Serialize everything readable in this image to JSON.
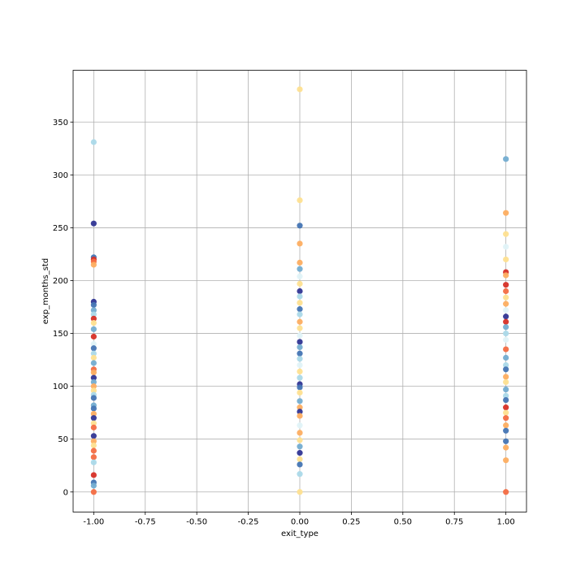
{
  "chart_data": {
    "type": "scatter",
    "title": "",
    "xlabel": "exit_type",
    "ylabel": "exp_months_std",
    "xlim": [
      -1.1,
      1.1
    ],
    "ylim": [
      -19,
      399
    ],
    "grid": true,
    "legend": "none",
    "xticks": [
      -1.0,
      -0.75,
      -0.5,
      -0.25,
      0.0,
      0.25,
      0.5,
      0.75,
      1.0
    ],
    "xtick_labels": [
      "-1.00",
      "-0.75",
      "-0.50",
      "-0.25",
      "0.00",
      "0.25",
      "0.50",
      "0.75",
      "1.00"
    ],
    "yticks": [
      0,
      50,
      100,
      150,
      200,
      250,
      300,
      350
    ],
    "ytick_labels": [
      "0",
      "50",
      "100",
      "150",
      "200",
      "250",
      "300",
      "350"
    ],
    "colormap": [
      "#313695",
      "#4575b4",
      "#74add1",
      "#abd9e9",
      "#e0f3f8",
      "#fee090",
      "#fdae61",
      "#f46d43",
      "#d73027"
    ],
    "points": [
      {
        "x": -1,
        "y": 331,
        "color": "#abd9e9"
      },
      {
        "x": -1,
        "y": 254,
        "color": "#313695"
      },
      {
        "x": -1,
        "y": 222,
        "color": "#4575b4"
      },
      {
        "x": -1,
        "y": 220,
        "color": "#d73027"
      },
      {
        "x": -1,
        "y": 218,
        "color": "#f46d43"
      },
      {
        "x": -1,
        "y": 215,
        "color": "#fdae61"
      },
      {
        "x": -1,
        "y": 180,
        "color": "#313695"
      },
      {
        "x": -1,
        "y": 177,
        "color": "#4575b4"
      },
      {
        "x": -1,
        "y": 172,
        "color": "#74add1"
      },
      {
        "x": -1,
        "y": 168,
        "color": "#abd9e9"
      },
      {
        "x": -1,
        "y": 164,
        "color": "#d73027"
      },
      {
        "x": -1,
        "y": 160,
        "color": "#fee090"
      },
      {
        "x": -1,
        "y": 154,
        "color": "#74add1"
      },
      {
        "x": -1,
        "y": 147,
        "color": "#d73027"
      },
      {
        "x": -1,
        "y": 140,
        "color": "#e0f3f8"
      },
      {
        "x": -1,
        "y": 136,
        "color": "#4575b4"
      },
      {
        "x": -1,
        "y": 131,
        "color": "#abd9e9"
      },
      {
        "x": -1,
        "y": 127,
        "color": "#fee090"
      },
      {
        "x": -1,
        "y": 122,
        "color": "#74add1"
      },
      {
        "x": -1,
        "y": 116,
        "color": "#f46d43"
      },
      {
        "x": -1,
        "y": 113,
        "color": "#fdae61"
      },
      {
        "x": -1,
        "y": 108,
        "color": "#313695"
      },
      {
        "x": -1,
        "y": 104,
        "color": "#74add1"
      },
      {
        "x": -1,
        "y": 100,
        "color": "#fdae61"
      },
      {
        "x": -1,
        "y": 96,
        "color": "#fee090"
      },
      {
        "x": -1,
        "y": 92,
        "color": "#abd9e9"
      },
      {
        "x": -1,
        "y": 89,
        "color": "#4575b4"
      },
      {
        "x": -1,
        "y": 82,
        "color": "#74add1"
      },
      {
        "x": -1,
        "y": 79,
        "color": "#4575b4"
      },
      {
        "x": -1,
        "y": 74,
        "color": "#fdae61"
      },
      {
        "x": -1,
        "y": 70,
        "color": "#313695"
      },
      {
        "x": -1,
        "y": 65,
        "color": "#fee090"
      },
      {
        "x": -1,
        "y": 61,
        "color": "#f46d43"
      },
      {
        "x": -1,
        "y": 53,
        "color": "#313695"
      },
      {
        "x": -1,
        "y": 48,
        "color": "#fdae61"
      },
      {
        "x": -1,
        "y": 44,
        "color": "#fee090"
      },
      {
        "x": -1,
        "y": 39,
        "color": "#f46d43"
      },
      {
        "x": -1,
        "y": 33,
        "color": "#f46d43"
      },
      {
        "x": -1,
        "y": 28,
        "color": "#abd9e9"
      },
      {
        "x": -1,
        "y": 16,
        "color": "#d73027"
      },
      {
        "x": -1,
        "y": 9,
        "color": "#4575b4"
      },
      {
        "x": -1,
        "y": 6,
        "color": "#74add1"
      },
      {
        "x": -1,
        "y": 0,
        "color": "#f46d43"
      },
      {
        "x": 0,
        "y": 381,
        "color": "#fee090"
      },
      {
        "x": 0,
        "y": 276,
        "color": "#fee090"
      },
      {
        "x": 0,
        "y": 252,
        "color": "#4575b4"
      },
      {
        "x": 0,
        "y": 235,
        "color": "#fdae61"
      },
      {
        "x": 0,
        "y": 217,
        "color": "#fdae61"
      },
      {
        "x": 0,
        "y": 211,
        "color": "#74add1"
      },
      {
        "x": 0,
        "y": 204,
        "color": "#e0f3f8"
      },
      {
        "x": 0,
        "y": 197,
        "color": "#fee090"
      },
      {
        "x": 0,
        "y": 190,
        "color": "#313695"
      },
      {
        "x": 0,
        "y": 185,
        "color": "#abd9e9"
      },
      {
        "x": 0,
        "y": 179,
        "color": "#fee090"
      },
      {
        "x": 0,
        "y": 173,
        "color": "#4575b4"
      },
      {
        "x": 0,
        "y": 168,
        "color": "#abd9e9"
      },
      {
        "x": 0,
        "y": 161,
        "color": "#fdae61"
      },
      {
        "x": 0,
        "y": 155,
        "color": "#fee090"
      },
      {
        "x": 0,
        "y": 148,
        "color": "#e0f3f8"
      },
      {
        "x": 0,
        "y": 142,
        "color": "#313695"
      },
      {
        "x": 0,
        "y": 137,
        "color": "#74add1"
      },
      {
        "x": 0,
        "y": 131,
        "color": "#4575b4"
      },
      {
        "x": 0,
        "y": 126,
        "color": "#abd9e9"
      },
      {
        "x": 0,
        "y": 120,
        "color": "#e0f3f8"
      },
      {
        "x": 0,
        "y": 114,
        "color": "#fee090"
      },
      {
        "x": 0,
        "y": 108,
        "color": "#abd9e9"
      },
      {
        "x": 0,
        "y": 102,
        "color": "#313695"
      },
      {
        "x": 0,
        "y": 99,
        "color": "#4575b4"
      },
      {
        "x": 0,
        "y": 94,
        "color": "#fee090"
      },
      {
        "x": 0,
        "y": 86,
        "color": "#74add1"
      },
      {
        "x": 0,
        "y": 80,
        "color": "#fdae61"
      },
      {
        "x": 0,
        "y": 76,
        "color": "#313695"
      },
      {
        "x": 0,
        "y": 72,
        "color": "#fdae61"
      },
      {
        "x": 0,
        "y": 63,
        "color": "#e0f3f8"
      },
      {
        "x": 0,
        "y": 56,
        "color": "#fdae61"
      },
      {
        "x": 0,
        "y": 49,
        "color": "#fee090"
      },
      {
        "x": 0,
        "y": 43,
        "color": "#74add1"
      },
      {
        "x": 0,
        "y": 37,
        "color": "#313695"
      },
      {
        "x": 0,
        "y": 31,
        "color": "#fee090"
      },
      {
        "x": 0,
        "y": 26,
        "color": "#4575b4"
      },
      {
        "x": 0,
        "y": 17,
        "color": "#abd9e9"
      },
      {
        "x": 0,
        "y": 0,
        "color": "#fee090"
      },
      {
        "x": 1,
        "y": 315,
        "color": "#74add1"
      },
      {
        "x": 1,
        "y": 264,
        "color": "#fdae61"
      },
      {
        "x": 1,
        "y": 244,
        "color": "#fee090"
      },
      {
        "x": 1,
        "y": 232,
        "color": "#e0f3f8"
      },
      {
        "x": 1,
        "y": 220,
        "color": "#fee090"
      },
      {
        "x": 1,
        "y": 208,
        "color": "#d73027"
      },
      {
        "x": 1,
        "y": 205,
        "color": "#fdae61"
      },
      {
        "x": 1,
        "y": 196,
        "color": "#d73027"
      },
      {
        "x": 1,
        "y": 190,
        "color": "#f46d43"
      },
      {
        "x": 1,
        "y": 184,
        "color": "#fee090"
      },
      {
        "x": 1,
        "y": 178,
        "color": "#fdae61"
      },
      {
        "x": 1,
        "y": 172,
        "color": "#e0f3f8"
      },
      {
        "x": 1,
        "y": 166,
        "color": "#313695"
      },
      {
        "x": 1,
        "y": 161,
        "color": "#d73027"
      },
      {
        "x": 1,
        "y": 156,
        "color": "#74add1"
      },
      {
        "x": 1,
        "y": 150,
        "color": "#abd9e9"
      },
      {
        "x": 1,
        "y": 144,
        "color": "#e0f3f8"
      },
      {
        "x": 1,
        "y": 135,
        "color": "#f46d43"
      },
      {
        "x": 1,
        "y": 127,
        "color": "#74add1"
      },
      {
        "x": 1,
        "y": 120,
        "color": "#abd9e9"
      },
      {
        "x": 1,
        "y": 116,
        "color": "#4575b4"
      },
      {
        "x": 1,
        "y": 109,
        "color": "#fdae61"
      },
      {
        "x": 1,
        "y": 104,
        "color": "#fee090"
      },
      {
        "x": 1,
        "y": 97,
        "color": "#74add1"
      },
      {
        "x": 1,
        "y": 91,
        "color": "#abd9e9"
      },
      {
        "x": 1,
        "y": 87,
        "color": "#4575b4"
      },
      {
        "x": 1,
        "y": 80,
        "color": "#d73027"
      },
      {
        "x": 1,
        "y": 75,
        "color": "#fee090"
      },
      {
        "x": 1,
        "y": 70,
        "color": "#f46d43"
      },
      {
        "x": 1,
        "y": 63,
        "color": "#fdae61"
      },
      {
        "x": 1,
        "y": 58,
        "color": "#4575b4"
      },
      {
        "x": 1,
        "y": 48,
        "color": "#4575b4"
      },
      {
        "x": 1,
        "y": 42,
        "color": "#fdae61"
      },
      {
        "x": 1,
        "y": 30,
        "color": "#fdae61"
      },
      {
        "x": 1,
        "y": 0,
        "color": "#f46d43"
      }
    ]
  }
}
